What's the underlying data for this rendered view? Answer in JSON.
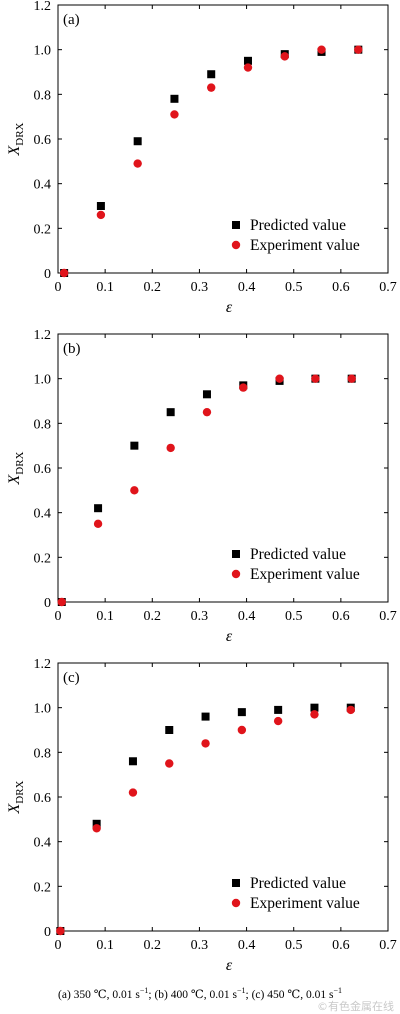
{
  "chart_data": [
    {
      "type": "scatter",
      "panel_label": "(a)",
      "ylabel": "X",
      "ylabel_sub": "DRX",
      "xlabel": "ε",
      "xlim": [
        0,
        0.7
      ],
      "ylim": [
        0,
        1.2
      ],
      "xticks": [
        "0",
        "0.1",
        "0.2",
        "0.3",
        "0.4",
        "0.5",
        "0.6",
        "0.7"
      ],
      "yticks": [
        "0",
        "0.2",
        "0.4",
        "0.6",
        "0.8",
        "1.0",
        "1.2"
      ],
      "legend_position": "bottom-right",
      "series": [
        {
          "name": "Predicted value",
          "marker": "square",
          "color": "#000000",
          "x": [
            0.013,
            0.091,
            0.169,
            0.247,
            0.325,
            0.403,
            0.481,
            0.559,
            0.637
          ],
          "y": [
            0.0,
            0.3,
            0.59,
            0.78,
            0.89,
            0.95,
            0.98,
            0.99,
            1.0
          ]
        },
        {
          "name": "Experiment value",
          "marker": "circle",
          "color": "#e0141b",
          "x": [
            0.013,
            0.091,
            0.169,
            0.247,
            0.325,
            0.403,
            0.481,
            0.559,
            0.637
          ],
          "y": [
            0.0,
            0.26,
            0.49,
            0.71,
            0.83,
            0.92,
            0.97,
            1.0,
            1.0
          ]
        }
      ]
    },
    {
      "type": "scatter",
      "panel_label": "(b)",
      "ylabel": "X",
      "ylabel_sub": "DRX",
      "xlabel": "ε",
      "xlim": [
        0,
        0.7
      ],
      "ylim": [
        0,
        1.2
      ],
      "xticks": [
        "0",
        "0.1",
        "0.2",
        "0.3",
        "0.4",
        "0.5",
        "0.6",
        "0.7"
      ],
      "yticks": [
        "0",
        "0.2",
        "0.4",
        "0.6",
        "0.8",
        "1.0",
        "1.2"
      ],
      "legend_position": "bottom-right",
      "series": [
        {
          "name": "Predicted value",
          "marker": "square",
          "color": "#000000",
          "x": [
            0.008,
            0.085,
            0.162,
            0.239,
            0.316,
            0.393,
            0.47,
            0.546,
            0.623
          ],
          "y": [
            0.0,
            0.42,
            0.7,
            0.85,
            0.93,
            0.97,
            0.99,
            1.0,
            1.0
          ]
        },
        {
          "name": "Experiment value",
          "marker": "circle",
          "color": "#e0141b",
          "x": [
            0.008,
            0.085,
            0.162,
            0.239,
            0.316,
            0.393,
            0.47,
            0.546,
            0.623
          ],
          "y": [
            0.0,
            0.35,
            0.5,
            0.69,
            0.85,
            0.96,
            1.0,
            1.0,
            1.0
          ]
        }
      ]
    },
    {
      "type": "scatter",
      "panel_label": "(c)",
      "ylabel": "X",
      "ylabel_sub": "DRX",
      "xlabel": "ε",
      "xlim": [
        0,
        0.7
      ],
      "ylim": [
        0,
        1.2
      ],
      "xticks": [
        "0",
        "0.1",
        "0.2",
        "0.3",
        "0.4",
        "0.5",
        "0.6",
        "0.7"
      ],
      "yticks": [
        "0",
        "0.2",
        "0.4",
        "0.6",
        "0.8",
        "1.0",
        "1.2"
      ],
      "legend_position": "bottom-right",
      "series": [
        {
          "name": "Predicted value",
          "marker": "square",
          "color": "#000000",
          "x": [
            0.005,
            0.082,
            0.159,
            0.236,
            0.313,
            0.39,
            0.467,
            0.544,
            0.621
          ],
          "y": [
            0.0,
            0.48,
            0.76,
            0.9,
            0.96,
            0.98,
            0.99,
            1.0,
            1.0
          ]
        },
        {
          "name": "Experiment value",
          "marker": "circle",
          "color": "#e0141b",
          "x": [
            0.005,
            0.082,
            0.159,
            0.236,
            0.313,
            0.39,
            0.467,
            0.544,
            0.621
          ],
          "y": [
            0.0,
            0.46,
            0.62,
            0.75,
            0.84,
            0.9,
            0.94,
            0.97,
            0.99
          ]
        }
      ]
    }
  ],
  "caption": "(a) 350 ℃, 0.01 s−1; (b) 400 ℃, 0.01 s−1; (c) 450 ℃, 0.01 s−1",
  "caption_parts": {
    "a": "(a) 350 ℃, 0.01 s",
    "b": "; (b) 400 ℃, 0.01 s",
    "c": "; (c) 450 ℃, 0.01 s",
    "exp": "−1"
  },
  "watermark": "©有色金属在线"
}
